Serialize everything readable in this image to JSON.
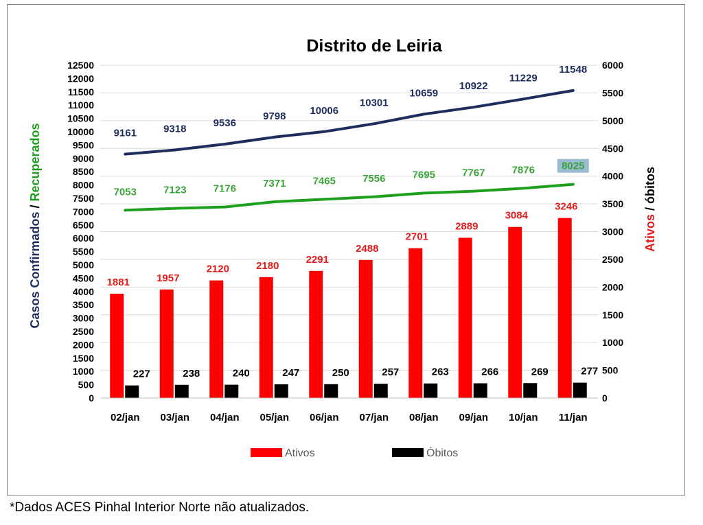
{
  "footnote": "*Dados ACES Pinhal Interior Norte não atualizados.",
  "colors": {
    "confirmados": "#1f2d5e",
    "recuperados": "#1ea01e",
    "recuperados_label": "#3aa33a",
    "ativos": "#ff0000",
    "ativos_label": "#e31b1b",
    "obitos": "#000000",
    "highlight": "#9bbcd0"
  },
  "chart_data": {
    "type": "bar",
    "title": "Distrito de Leiria",
    "categories": [
      "02/jan",
      "03/jan",
      "04/jan",
      "05/jan",
      "06/jan",
      "07/jan",
      "08/jan",
      "09/jan",
      "10/jan",
      "11/jan"
    ],
    "ylabel_left": {
      "part1": "Casos Confirmados",
      "separator": " / ",
      "part2": "Recuperados"
    },
    "ylabel_right": {
      "part1": "Ativos",
      "separator": " / ",
      "part2": "óbitos"
    },
    "ylim_left": [
      0,
      12500
    ],
    "yticks_left": [
      0,
      500,
      1000,
      1500,
      2000,
      2500,
      3000,
      3500,
      4000,
      4500,
      5000,
      5500,
      6000,
      6500,
      7000,
      7500,
      8000,
      8500,
      9000,
      9500,
      10000,
      10500,
      11000,
      11500,
      12000,
      12500
    ],
    "ylim_right": [
      0,
      6000
    ],
    "yticks_right": [
      0,
      500,
      1000,
      1500,
      2000,
      2500,
      3000,
      3500,
      4000,
      4500,
      5000,
      5500,
      6000
    ],
    "grid": true,
    "legend_position": "bottom",
    "series": [
      {
        "name": "Casos Confirmados",
        "kind": "line",
        "axis": "left",
        "values": [
          9161,
          9318,
          9536,
          9798,
          10006,
          10301,
          10659,
          10922,
          11229,
          11548
        ]
      },
      {
        "name": "Recuperados",
        "kind": "line",
        "axis": "left",
        "values": [
          7053,
          7123,
          7176,
          7371,
          7465,
          7556,
          7695,
          7767,
          7876,
          8025
        ]
      },
      {
        "name": "Ativos",
        "kind": "bar",
        "axis": "right",
        "legend": true,
        "values": [
          1881,
          1957,
          2120,
          2180,
          2291,
          2488,
          2701,
          2889,
          3084,
          3246
        ]
      },
      {
        "name": "Óbitos",
        "kind": "bar",
        "axis": "right",
        "legend": true,
        "values": [
          227,
          238,
          240,
          247,
          250,
          257,
          263,
          266,
          269,
          277
        ]
      }
    ]
  }
}
